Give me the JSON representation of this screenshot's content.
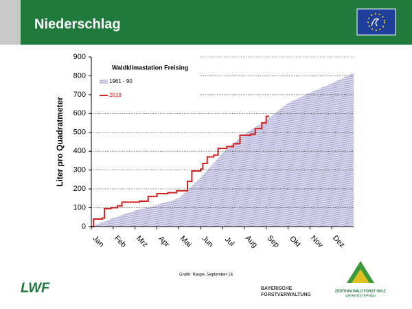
{
  "header": {
    "title": "Niederschlag"
  },
  "chart_data": {
    "type": "line",
    "title": "Waldklimastation Freising",
    "y_label": "Liter pro Quadratmeter",
    "xlim": [
      0,
      12
    ],
    "xticks": [
      {
        "value": 0,
        "label": "Jan"
      },
      {
        "value": 1,
        "label": "Feb"
      },
      {
        "value": 2,
        "label": "Mrz"
      },
      {
        "value": 3,
        "label": "Apr"
      },
      {
        "value": 4,
        "label": "Mai"
      },
      {
        "value": 5,
        "label": "Jun"
      },
      {
        "value": 6,
        "label": "Jul"
      },
      {
        "value": 7,
        "label": "Aug"
      },
      {
        "value": 8,
        "label": "Sep"
      },
      {
        "value": 9,
        "label": "Okt"
      },
      {
        "value": 10,
        "label": "Nov"
      },
      {
        "value": 11,
        "label": "Dez"
      }
    ],
    "ylim": [
      0,
      900
    ],
    "yticks": [
      0,
      100,
      200,
      300,
      400,
      500,
      600,
      700,
      800,
      900
    ],
    "grid": true,
    "legend": "upper left",
    "series": [
      {
        "name": "1961 - 90",
        "color": "#b4b4d8",
        "fill": "area",
        "x": [
          0,
          1,
          2,
          3,
          4,
          5,
          6,
          7,
          8,
          9,
          10,
          11,
          12
        ],
        "values": [
          0,
          45,
          85,
          115,
          150,
          260,
          390,
          490,
          565,
          655,
          710,
          760,
          815
        ]
      },
      {
        "name": "2018",
        "color": "#d42020",
        "step": true,
        "x": [
          0,
          0.1,
          0.5,
          0.6,
          0.9,
          1.2,
          1.4,
          2.2,
          2.6,
          3.0,
          3.5,
          3.9,
          4.3,
          4.4,
          4.6,
          5.0,
          5.1,
          5.3,
          5.6,
          5.8,
          6.2,
          6.5,
          6.8,
          7.3,
          7.5,
          7.8,
          8.0,
          8.1
        ],
        "values": [
          0,
          40,
          45,
          95,
          100,
          110,
          130,
          135,
          160,
          175,
          180,
          190,
          190,
          240,
          295,
          305,
          335,
          370,
          380,
          415,
          425,
          440,
          485,
          490,
          520,
          550,
          585,
          590
        ]
      }
    ]
  },
  "footer": {
    "credit": "Grafik: Raspe, September 18",
    "lwf": "LWF",
    "bayern": [
      "BAYERISCHE",
      "FORSTVERWALTUNG"
    ],
    "zentrum": [
      "ZENTRUM WALD FORST HOLZ",
      "WEIHENSTEPHAN"
    ]
  }
}
